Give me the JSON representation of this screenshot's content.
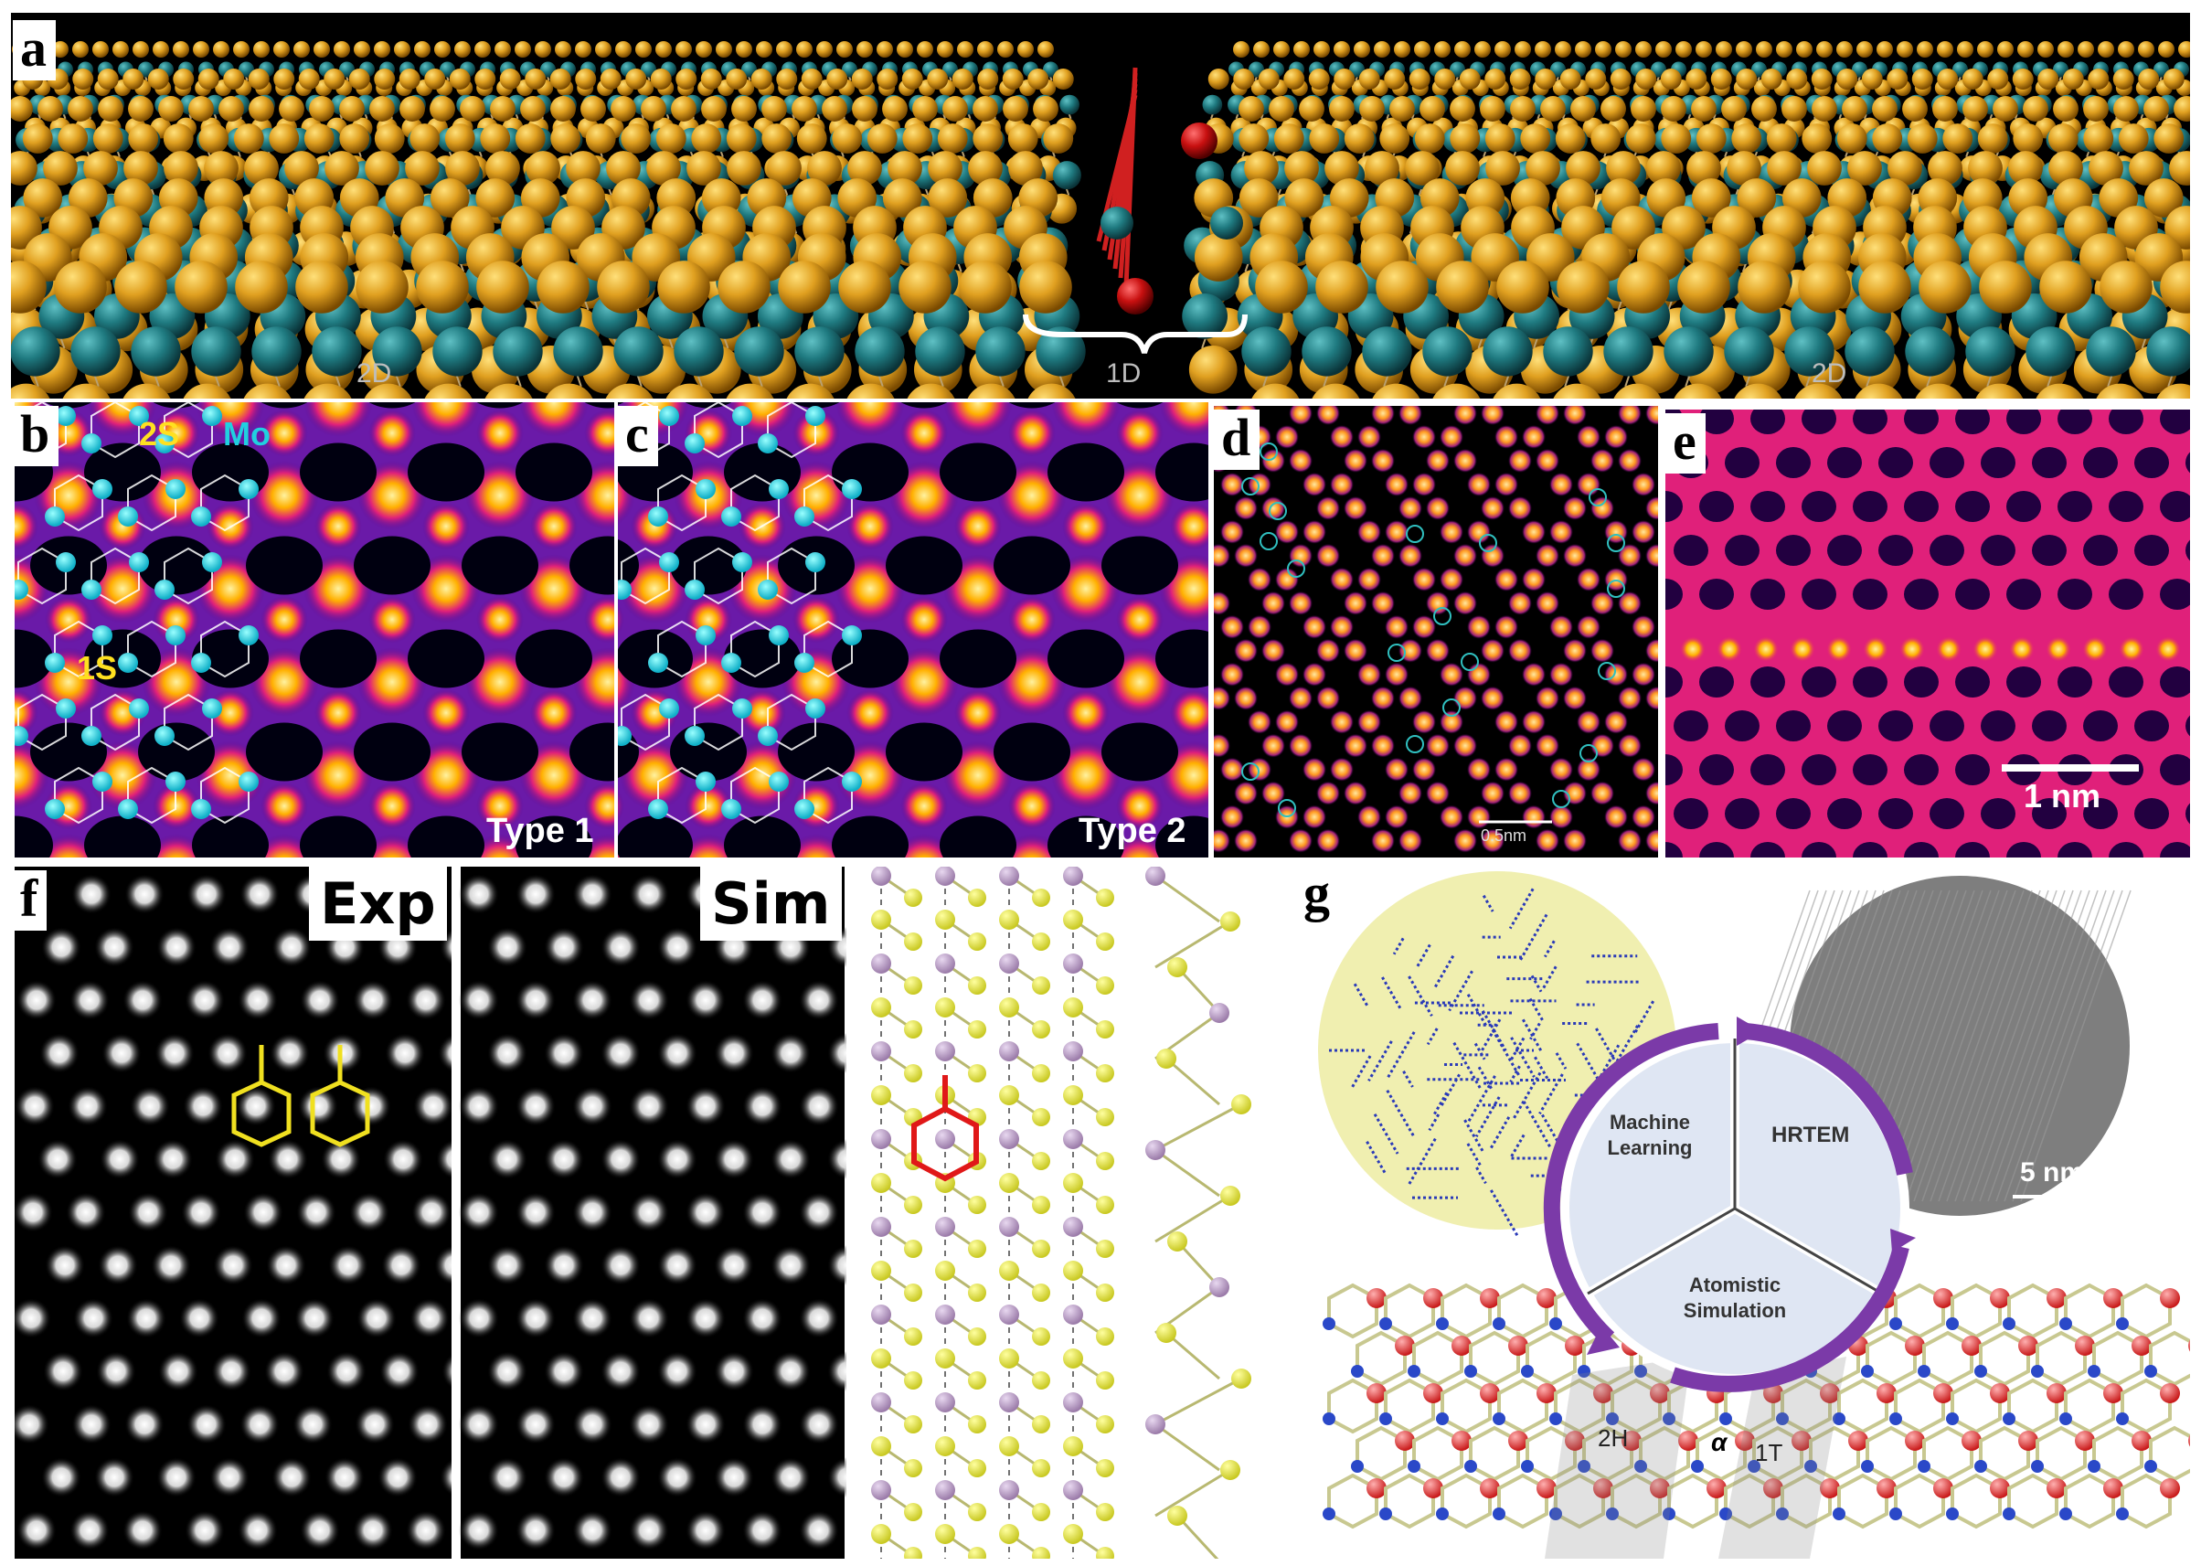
{
  "panel_labels": {
    "a": "a",
    "b": "b",
    "c": "c",
    "d": "d",
    "e": "e",
    "f": "f",
    "g": "g"
  },
  "panel_a": {
    "left_label": "2D",
    "center_label": "1D",
    "right_label": "2D",
    "colors": {
      "sulfur": "#e0a020",
      "molybdenum": "#1f7a80",
      "defect": "#c81010",
      "background": "#000000"
    }
  },
  "panel_b": {
    "label_2s": "2S",
    "label_mo": "Mo",
    "label_1s": "1S",
    "type_label": "Type 1"
  },
  "panel_c": {
    "type_label": "Type 2"
  },
  "panel_d": {
    "scale_bar": "0.5nm"
  },
  "panel_e": {
    "scale_bar": "1 nm"
  },
  "panel_f": {
    "exp_label": "Exp",
    "sim_label": "Sim"
  },
  "panel_g": {
    "cycle": [
      "Machine Learning",
      "HRTEM",
      "Atomistic Simulation"
    ],
    "scale_bar": "5 nm",
    "phase_2h": "2H",
    "phase_alpha": "α",
    "phase_1t": "1T",
    "accent_color": "#7b3aa8"
  }
}
